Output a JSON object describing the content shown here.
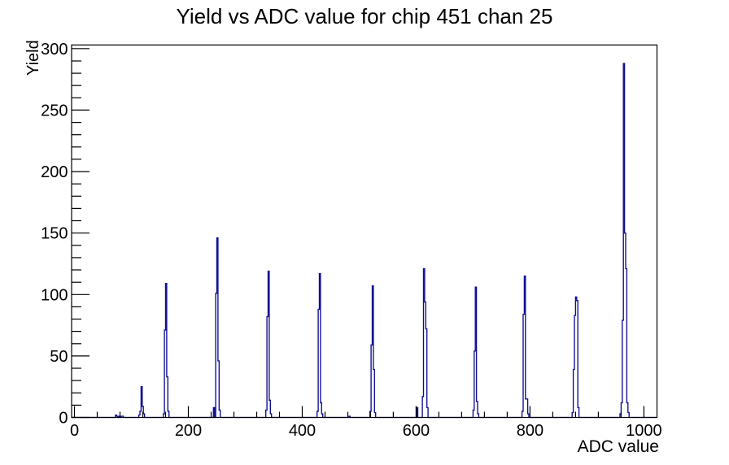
{
  "chart_data": {
    "type": "bar",
    "title": "Yield vs ADC value for chip 451 chan 25",
    "xlabel": "ADC value",
    "ylabel": "Yield",
    "xlim": [
      -5,
      1023
    ],
    "ylim": [
      0,
      303
    ],
    "x_major_ticks": [
      0,
      200,
      400,
      600,
      800,
      1000
    ],
    "x_minor_step": 40,
    "y_major_ticks": [
      0,
      50,
      100,
      150,
      200,
      250,
      300
    ],
    "y_minor_step": 10,
    "grid": false,
    "legend": "none",
    "line_color": "#0b0b93",
    "axis_color": "#000000",
    "background_color": "#ffffff",
    "bin_width": 2,
    "clusters": [
      {
        "start": 72,
        "counts": [
          2,
          1,
          0,
          1,
          0,
          1,
          1
        ]
      },
      {
        "start": 113,
        "counts": [
          2,
          5,
          25,
          9,
          3
        ]
      },
      {
        "start": 156,
        "counts": [
          3,
          71,
          109,
          33,
          5
        ]
      },
      {
        "start": 244,
        "counts": [
          8,
          0,
          101,
          146,
          46,
          6
        ]
      },
      {
        "start": 336,
        "counts": [
          6,
          82,
          119,
          14,
          3
        ]
      },
      {
        "start": 426,
        "counts": [
          5,
          88,
          117,
          12,
          3
        ]
      },
      {
        "start": 482,
        "counts": [
          1
        ]
      },
      {
        "start": 519,
        "counts": [
          5,
          59,
          107,
          39,
          4
        ]
      },
      {
        "start": 601,
        "counts": [
          8,
          0,
          0,
          0,
          0,
          17,
          121,
          94,
          72,
          8
        ]
      },
      {
        "start": 700,
        "counts": [
          6,
          54,
          106,
          13,
          3
        ]
      },
      {
        "start": 786,
        "counts": [
          5,
          84,
          115,
          15,
          15,
          3
        ]
      },
      {
        "start": 874,
        "counts": [
          4,
          39,
          83,
          98,
          95,
          8
        ]
      },
      {
        "start": 958,
        "counts": [
          3,
          12,
          79,
          288,
          150,
          121,
          12,
          4
        ]
      }
    ]
  }
}
